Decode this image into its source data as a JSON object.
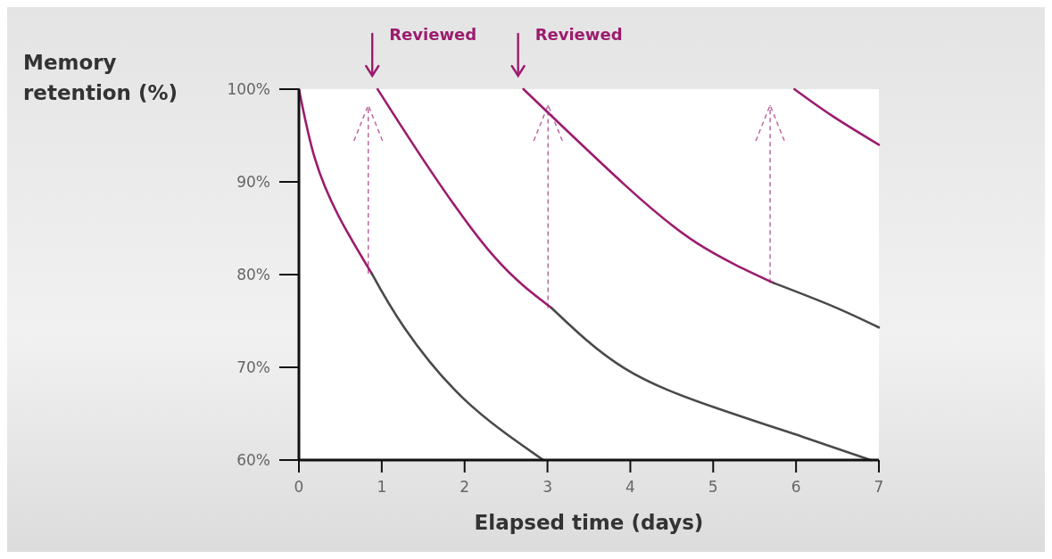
{
  "chart_data": {
    "type": "line",
    "xlabel": "Elapsed time (days)",
    "ylabel": "Memory retention (%)",
    "xlim": [
      0,
      7
    ],
    "ylim": [
      60,
      100
    ],
    "xticks": [
      0,
      1,
      2,
      3,
      4,
      5,
      6,
      7
    ],
    "yticks": [
      {
        "value": 60,
        "label": "60%"
      },
      {
        "value": 70,
        "label": "70%"
      },
      {
        "value": 80,
        "label": "80%"
      },
      {
        "value": 90,
        "label": "90%"
      },
      {
        "value": 100,
        "label": "100%"
      }
    ],
    "grid": false,
    "marker": "none",
    "line_style": "solid",
    "series": [
      {
        "color": "#9c1c6e",
        "x": [
          0,
          0.19,
          0.48,
          0.88
        ],
        "values": [
          100,
          92.6,
          86.3,
          80.1
        ]
      },
      {
        "color": "#4a4a4a",
        "x": [
          0.88,
          1.27,
          1.99,
          2.95
        ],
        "values": [
          80.1,
          74.3,
          66.6,
          60
        ]
      },
      {
        "color": "#9c1c6e",
        "x": [
          0.95,
          1.56,
          2.35,
          3.05
        ],
        "values": [
          100,
          91.6,
          82,
          76.4
        ]
      },
      {
        "color": "#4a4a4a",
        "x": [
          3.05,
          3.93,
          5.01,
          6.08,
          6.9
        ],
        "values": [
          76.4,
          69.9,
          65.7,
          62.5,
          60
        ]
      },
      {
        "color": "#9c1c6e",
        "x": [
          2.71,
          3.93,
          4.82,
          5.73
        ],
        "values": [
          100,
          89.7,
          83.3,
          79.1
        ]
      },
      {
        "color": "#4a4a4a",
        "x": [
          5.73,
          6.44,
          7
        ],
        "values": [
          79.1,
          76.6,
          74.3
        ]
      },
      {
        "color": "#9c1c6e",
        "x": [
          5.98,
          6.44,
          7
        ],
        "values": [
          100,
          97.1,
          94
        ]
      }
    ],
    "annotations": [
      "Reviewed",
      "Reviewed"
    ]
  }
}
